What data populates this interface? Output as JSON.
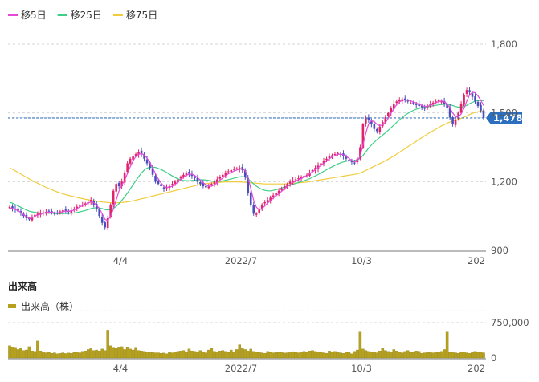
{
  "chart_data": [
    {
      "type": "candlestick",
      "legend": [
        {
          "name": "移5日",
          "color": "#e34ad8"
        },
        {
          "name": "移25日",
          "color": "#3ecf86"
        },
        {
          "name": "移75日",
          "color": "#f0cc3c"
        }
      ],
      "y_ticks": [
        "1,800",
        "1,500",
        "1,200",
        "900"
      ],
      "ylim": [
        900,
        1800
      ],
      "x_ticks": [
        "4/4",
        "2022/7",
        "10/3",
        "202"
      ],
      "current_price": 1478,
      "current_price_label": "1,478",
      "up_color": "#e0246a",
      "down_color": "#4a4fbd",
      "close": [
        1090,
        1084,
        1078,
        1070,
        1062,
        1050,
        1040,
        1035,
        1045,
        1055,
        1060,
        1062,
        1065,
        1068,
        1070,
        1065,
        1060,
        1062,
        1070,
        1075,
        1072,
        1068,
        1075,
        1082,
        1090,
        1095,
        1100,
        1105,
        1110,
        1120,
        1100,
        1080,
        1050,
        1020,
        1000,
        1040,
        1100,
        1160,
        1190,
        1180,
        1200,
        1240,
        1280,
        1300,
        1310,
        1320,
        1330,
        1320,
        1300,
        1280,
        1260,
        1230,
        1200,
        1190,
        1180,
        1170,
        1175,
        1180,
        1190,
        1200,
        1210,
        1220,
        1230,
        1240,
        1235,
        1225,
        1215,
        1200,
        1190,
        1180,
        1175,
        1180,
        1190,
        1200,
        1210,
        1220,
        1230,
        1240,
        1245,
        1250,
        1255,
        1258,
        1260,
        1250,
        1220,
        1150,
        1100,
        1060,
        1060,
        1080,
        1100,
        1110,
        1120,
        1130,
        1140,
        1150,
        1160,
        1170,
        1180,
        1190,
        1200,
        1205,
        1210,
        1215,
        1220,
        1225,
        1230,
        1240,
        1250,
        1260,
        1270,
        1280,
        1290,
        1300,
        1310,
        1315,
        1320,
        1325,
        1320,
        1310,
        1300,
        1290,
        1285,
        1280,
        1300,
        1350,
        1450,
        1480,
        1470,
        1450,
        1430,
        1420,
        1440,
        1460,
        1480,
        1500,
        1520,
        1540,
        1550,
        1555,
        1560,
        1555,
        1550,
        1545,
        1540,
        1535,
        1530,
        1525,
        1520,
        1530,
        1540,
        1545,
        1550,
        1555,
        1550,
        1540,
        1520,
        1480,
        1450,
        1470,
        1500,
        1540,
        1580,
        1600,
        1590,
        1570,
        1550,
        1530,
        1510,
        1478
      ],
      "ma5": [
        1085,
        1082,
        1078,
        1073,
        1065,
        1055,
        1046,
        1040,
        1042,
        1049,
        1054,
        1058,
        1062,
        1065,
        1067,
        1066,
        1064,
        1063,
        1065,
        1069,
        1071,
        1071,
        1072,
        1076,
        1082,
        1089,
        1095,
        1100,
        1106,
        1112,
        1108,
        1098,
        1082,
        1060,
        1035,
        1030,
        1050,
        1080,
        1120,
        1160,
        1185,
        1205,
        1235,
        1265,
        1290,
        1310,
        1320,
        1322,
        1316,
        1302,
        1284,
        1260,
        1235,
        1212,
        1194,
        1180,
        1175,
        1176,
        1180,
        1188,
        1198,
        1208,
        1218,
        1228,
        1233,
        1232,
        1227,
        1218,
        1207,
        1196,
        1186,
        1180,
        1180,
        1186,
        1196,
        1206,
        1216,
        1226,
        1234,
        1240,
        1246,
        1251,
        1255,
        1255,
        1248,
        1218,
        1170,
        1120,
        1088,
        1078,
        1082,
        1094,
        1106,
        1118,
        1128,
        1138,
        1148,
        1158,
        1168,
        1178,
        1188,
        1196,
        1202,
        1208,
        1214,
        1220,
        1226,
        1234,
        1243,
        1252,
        1261,
        1270,
        1280,
        1290,
        1300,
        1308,
        1314,
        1319,
        1320,
        1317,
        1311,
        1302,
        1292,
        1286,
        1290,
        1312,
        1360,
        1412,
        1452,
        1466,
        1462,
        1450,
        1444,
        1448,
        1458,
        1476,
        1498,
        1518,
        1536,
        1548,
        1555,
        1557,
        1556,
        1553,
        1548,
        1543,
        1538,
        1532,
        1528,
        1529,
        1533,
        1538,
        1544,
        1550,
        1552,
        1549,
        1540,
        1522,
        1500,
        1484,
        1482,
        1496,
        1520,
        1552,
        1578,
        1590,
        1588,
        1574,
        1556,
        1532
      ],
      "ma25": [
        1110,
        1106,
        1100,
        1094,
        1088,
        1082,
        1076,
        1071,
        1068,
        1066,
        1064,
        1063,
        1062,
        1062,
        1062,
        1062,
        1061,
        1060,
        1060,
        1060,
        1061,
        1061,
        1062,
        1063,
        1065,
        1068,
        1071,
        1074,
        1078,
        1082,
        1085,
        1086,
        1085,
        1082,
        1078,
        1076,
        1078,
        1083,
        1092,
        1104,
        1118,
        1133,
        1150,
        1168,
        1186,
        1204,
        1222,
        1238,
        1251,
        1259,
        1263,
        1264,
        1262,
        1258,
        1253,
        1247,
        1240,
        1232,
        1225,
        1218,
        1212,
        1208,
        1205,
        1204,
        1204,
        1205,
        1206,
        1207,
        1208,
        1208,
        1207,
        1205,
        1203,
        1201,
        1200,
        1201,
        1203,
        1206,
        1209,
        1212,
        1215,
        1218,
        1221,
        1222,
        1220,
        1213,
        1202,
        1190,
        1180,
        1172,
        1166,
        1162,
        1160,
        1160,
        1162,
        1165,
        1168,
        1172,
        1176,
        1180,
        1184,
        1188,
        1192,
        1196,
        1200,
        1204,
        1208,
        1213,
        1219,
        1225,
        1231,
        1238,
        1245,
        1252,
        1259,
        1265,
        1271,
        1277,
        1282,
        1286,
        1289,
        1291,
        1292,
        1292,
        1295,
        1302,
        1314,
        1330,
        1346,
        1360,
        1372,
        1383,
        1393,
        1403,
        1413,
        1424,
        1435,
        1447,
        1459,
        1470,
        1480,
        1490,
        1498,
        1505,
        1511,
        1516,
        1520,
        1523,
        1525,
        1527,
        1529,
        1531,
        1533,
        1535,
        1537,
        1538,
        1538,
        1536,
        1532,
        1528,
        1525,
        1525,
        1528,
        1533,
        1540,
        1546,
        1551,
        1554,
        1555,
        1553
      ],
      "ma75": [
        1260,
        1254,
        1247,
        1240,
        1233,
        1226,
        1219,
        1212,
        1205,
        1199,
        1193,
        1187,
        1181,
        1175,
        1170,
        1165,
        1160,
        1155,
        1151,
        1147,
        1143,
        1140,
        1137,
        1134,
        1131,
        1128,
        1126,
        1123,
        1121,
        1119,
        1117,
        1115,
        1113,
        1111,
        1110,
        1109,
        1108,
        1108,
        1108,
        1108,
        1109,
        1110,
        1112,
        1114,
        1116,
        1119,
        1122,
        1125,
        1128,
        1131,
        1134,
        1137,
        1140,
        1143,
        1146,
        1149,
        1152,
        1155,
        1158,
        1161,
        1164,
        1167,
        1170,
        1173,
        1176,
        1179,
        1182,
        1185,
        1187,
        1189,
        1191,
        1193,
        1194,
        1195,
        1196,
        1197,
        1198,
        1199,
        1199,
        1199,
        1199,
        1199,
        1199,
        1198,
        1197,
        1196,
        1195,
        1194,
        1193,
        1192,
        1191,
        1190,
        1190,
        1190,
        1190,
        1190,
        1190,
        1190,
        1190,
        1191,
        1192,
        1193,
        1194,
        1195,
        1196,
        1197,
        1198,
        1200,
        1202,
        1204,
        1206,
        1208,
        1210,
        1212,
        1214,
        1216,
        1218,
        1220,
        1222,
        1224,
        1226,
        1228,
        1230,
        1232,
        1234,
        1238,
        1243,
        1249,
        1255,
        1261,
        1267,
        1273,
        1279,
        1285,
        1291,
        1298,
        1305,
        1312,
        1320,
        1328,
        1336,
        1344,
        1352,
        1360,
        1368,
        1376,
        1384,
        1392,
        1400,
        1408,
        1415,
        1422,
        1429,
        1436,
        1443,
        1449,
        1455,
        1460,
        1464,
        1468,
        1472,
        1476,
        1481,
        1487,
        1493,
        1498,
        1502,
        1505,
        1507,
        1508
      ]
    },
    {
      "type": "bar",
      "title": "出来高",
      "legend": [
        {
          "name": "出来高（株）",
          "color": "#b6a11e"
        }
      ],
      "y_ticks": [
        "750,000",
        "0"
      ],
      "ylim": [
        0,
        1000000
      ],
      "x_ticks": [
        "4/4",
        "2022/7",
        "10/3",
        "202"
      ],
      "values": [
        260000,
        230000,
        210000,
        180000,
        200000,
        160000,
        170000,
        240000,
        150000,
        140000,
        360000,
        150000,
        130000,
        110000,
        120000,
        100000,
        110000,
        90000,
        100000,
        110000,
        95000,
        105000,
        100000,
        120000,
        130000,
        110000,
        140000,
        150000,
        180000,
        200000,
        160000,
        170000,
        150000,
        190000,
        160000,
        590000,
        260000,
        210000,
        200000,
        230000,
        240000,
        180000,
        220000,
        190000,
        170000,
        210000,
        160000,
        150000,
        140000,
        130000,
        120000,
        115000,
        110000,
        110000,
        100000,
        105000,
        90000,
        120000,
        110000,
        130000,
        140000,
        150000,
        160000,
        120000,
        190000,
        150000,
        140000,
        130000,
        160000,
        120000,
        110000,
        170000,
        200000,
        140000,
        130000,
        150000,
        160000,
        140000,
        120000,
        170000,
        130000,
        180000,
        280000,
        200000,
        180000,
        150000,
        190000,
        140000,
        120000,
        130000,
        110000,
        100000,
        140000,
        120000,
        110000,
        130000,
        120000,
        115000,
        105000,
        110000,
        125000,
        135000,
        120000,
        110000,
        130000,
        140000,
        120000,
        150000,
        160000,
        140000,
        130000,
        120000,
        110000,
        100000,
        150000,
        130000,
        140000,
        120000,
        110000,
        100000,
        130000,
        120000,
        90000,
        140000,
        170000,
        550000,
        190000,
        160000,
        140000,
        130000,
        120000,
        110000,
        150000,
        200000,
        160000,
        140000,
        130000,
        180000,
        150000,
        120000,
        110000,
        140000,
        160000,
        130000,
        120000,
        150000,
        140000,
        100000,
        110000,
        120000,
        130000,
        110000,
        120000,
        130000,
        140000,
        180000,
        550000,
        120000,
        130000,
        110000,
        100000,
        120000,
        130000,
        110000,
        100000,
        120000,
        140000,
        130000,
        120000,
        110000
      ]
    }
  ]
}
